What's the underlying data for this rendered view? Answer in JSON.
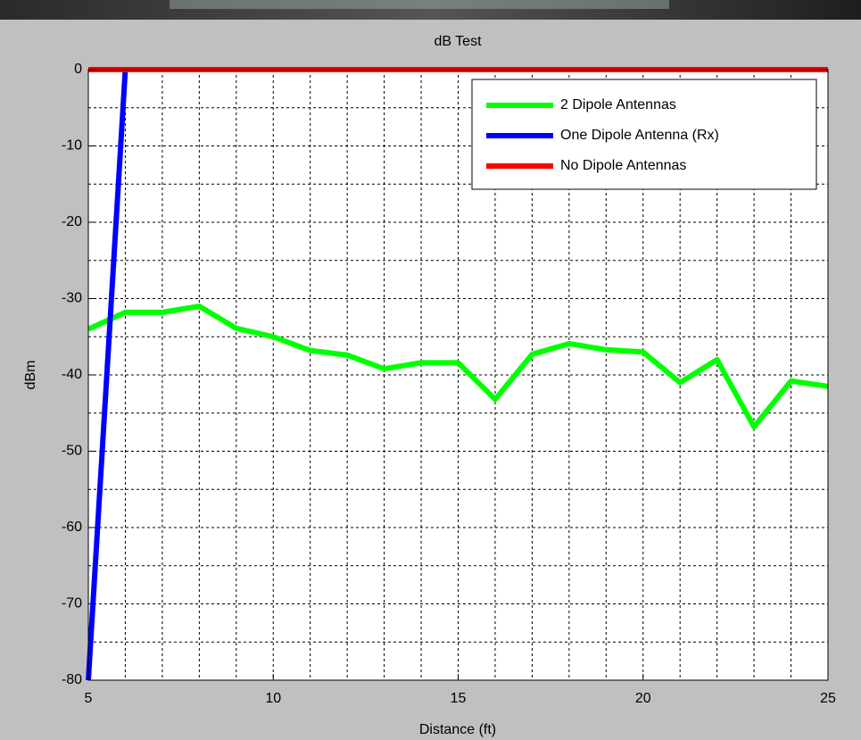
{
  "chart_data": {
    "type": "line",
    "title": "dB Test",
    "xlabel": "Distance (ft)",
    "ylabel": "dBm",
    "xlim": [
      5,
      25
    ],
    "ylim": [
      -80,
      0
    ],
    "xticks": [
      5,
      10,
      15,
      20,
      25
    ],
    "yticks": [
      0,
      -10,
      -20,
      -30,
      -40,
      -50,
      -60,
      -70,
      -80
    ],
    "xgrid": [
      5,
      6,
      7,
      8,
      9,
      10,
      11,
      12,
      13,
      14,
      15,
      16,
      17,
      18,
      19,
      20,
      21,
      22,
      23,
      24,
      25
    ],
    "ygrid": [
      0,
      -5,
      -10,
      -15,
      -20,
      -25,
      -30,
      -35,
      -40,
      -45,
      -50,
      -55,
      -60,
      -65,
      -70,
      -75,
      -80
    ],
    "grid": true,
    "legend_position": "upper right",
    "series": [
      {
        "name": "2 Dipole Antennas",
        "color": "#00ff00",
        "x": [
          5,
          6,
          7,
          8,
          9,
          10,
          11,
          12,
          13,
          14,
          15,
          16,
          17,
          18,
          19,
          20,
          21,
          22,
          23,
          24,
          25
        ],
        "values": [
          -34,
          -31.8,
          -31.8,
          -31,
          -33.9,
          -35,
          -36.8,
          -37.4,
          -39.2,
          -38.4,
          -38.4,
          -43.2,
          -37.3,
          -35.9,
          -36.7,
          -37,
          -41,
          -38,
          -46.8,
          -40.8,
          -41.5
        ]
      },
      {
        "name": "One Dipole Antenna (Rx)",
        "color": "#0000ff",
        "x": [
          5,
          6
        ],
        "values": [
          -80,
          0
        ]
      },
      {
        "name": "No Dipole Antennas",
        "color": "#ff0000",
        "x": [
          5,
          25
        ],
        "values": [
          0,
          0
        ]
      }
    ]
  }
}
